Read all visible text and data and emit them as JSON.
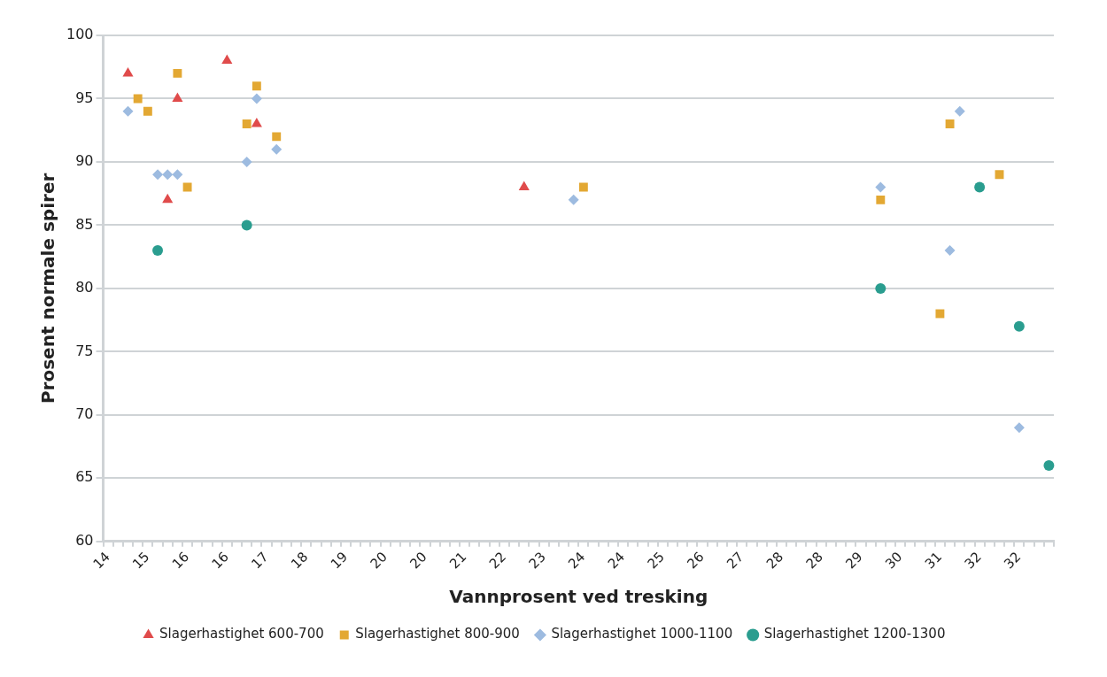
{
  "chart_data": {
    "type": "scatter",
    "xlabel": "Vannprosent ved tresking",
    "ylabel": "Prosent normale spirer",
    "categories": [
      "14",
      null,
      null,
      null,
      "15",
      null,
      null,
      null,
      "16",
      null,
      null,
      null,
      "16",
      null,
      null,
      null,
      "17",
      null,
      null,
      null,
      "18",
      null,
      null,
      null,
      "19",
      null,
      null,
      null,
      "20",
      null,
      null,
      null,
      "20",
      null,
      null,
      null,
      "21",
      null,
      null,
      null,
      "22",
      null,
      null,
      null,
      "23",
      null,
      null,
      null,
      "24",
      null,
      null,
      null,
      "24",
      null,
      null,
      null,
      "25",
      null,
      null,
      null,
      "26",
      null,
      null,
      null,
      "27",
      null,
      null,
      null,
      "28",
      null,
      null,
      null,
      "28",
      null,
      null,
      null,
      "29",
      null,
      null,
      null,
      "30",
      null,
      null,
      null,
      "31",
      null,
      null,
      null,
      "32",
      null,
      null,
      null,
      "32",
      null,
      null,
      null
    ],
    "series": [
      {
        "name": "Slagerhastighet 600-700",
        "color": "#e04b4b",
        "marker": "triangle",
        "values": [
          null,
          null,
          97,
          null,
          null,
          null,
          87,
          95,
          null,
          null,
          null,
          null,
          98,
          null,
          null,
          93,
          null,
          null,
          null,
          null,
          null,
          null,
          null,
          null,
          null,
          null,
          null,
          null,
          null,
          null,
          null,
          null,
          null,
          null,
          null,
          null,
          null,
          null,
          null,
          null,
          null,
          null,
          88,
          null,
          null,
          null,
          null,
          null,
          null,
          null,
          null,
          null,
          null,
          null,
          null,
          null,
          null,
          null,
          null,
          null,
          null,
          null,
          null,
          null,
          null,
          null,
          null,
          null,
          null,
          null,
          null,
          null,
          null,
          null,
          null,
          null,
          null,
          null,
          null,
          null,
          null,
          null,
          null,
          null,
          null,
          null,
          null,
          null,
          null,
          null,
          null,
          null,
          null,
          null,
          null,
          null
        ]
      },
      {
        "name": "Slagerhastighet 800-900",
        "color": "#e3a833",
        "marker": "square",
        "values": [
          null,
          null,
          null,
          95,
          94,
          null,
          null,
          97,
          88,
          null,
          null,
          null,
          null,
          null,
          93,
          96,
          null,
          92,
          null,
          null,
          null,
          null,
          null,
          null,
          null,
          null,
          null,
          null,
          null,
          null,
          null,
          null,
          null,
          null,
          null,
          null,
          null,
          null,
          null,
          null,
          null,
          null,
          null,
          null,
          null,
          null,
          null,
          null,
          88,
          null,
          null,
          null,
          null,
          null,
          null,
          null,
          null,
          null,
          null,
          null,
          null,
          null,
          null,
          null,
          null,
          null,
          null,
          null,
          null,
          null,
          null,
          null,
          null,
          null,
          null,
          null,
          null,
          null,
          87,
          null,
          null,
          null,
          null,
          null,
          78,
          93,
          null,
          null,
          null,
          null,
          89,
          null,
          null,
          null,
          null,
          null
        ]
      },
      {
        "name": "Slagerhastighet 1000-1100",
        "color": "#9dbbe0",
        "marker": "diamond",
        "values": [
          null,
          null,
          94,
          null,
          null,
          89,
          89,
          89,
          null,
          null,
          null,
          null,
          null,
          null,
          90,
          95,
          null,
          91,
          null,
          null,
          null,
          null,
          null,
          null,
          null,
          null,
          null,
          null,
          null,
          null,
          null,
          null,
          null,
          null,
          null,
          null,
          null,
          null,
          null,
          null,
          null,
          null,
          null,
          null,
          null,
          null,
          null,
          87,
          null,
          null,
          null,
          null,
          null,
          null,
          null,
          null,
          null,
          null,
          null,
          null,
          null,
          null,
          null,
          null,
          null,
          null,
          null,
          null,
          null,
          null,
          null,
          null,
          null,
          null,
          null,
          null,
          null,
          null,
          88,
          null,
          null,
          null,
          null,
          null,
          null,
          83,
          94,
          null,
          null,
          null,
          null,
          null,
          69,
          null,
          null,
          null
        ]
      },
      {
        "name": "Slagerhastighet 1200-1300",
        "color": "#2a9d8f",
        "marker": "circle",
        "values": [
          null,
          null,
          null,
          null,
          null,
          83,
          null,
          null,
          null,
          null,
          null,
          null,
          null,
          null,
          85,
          null,
          null,
          null,
          null,
          null,
          null,
          null,
          null,
          null,
          null,
          null,
          null,
          null,
          null,
          null,
          null,
          null,
          null,
          null,
          null,
          null,
          null,
          null,
          null,
          null,
          null,
          null,
          null,
          null,
          null,
          null,
          null,
          null,
          null,
          null,
          null,
          null,
          null,
          null,
          null,
          null,
          null,
          null,
          null,
          null,
          null,
          null,
          null,
          null,
          null,
          null,
          null,
          null,
          null,
          null,
          null,
          null,
          null,
          null,
          null,
          null,
          null,
          null,
          80,
          null,
          null,
          null,
          null,
          null,
          null,
          null,
          null,
          null,
          88,
          null,
          null,
          null,
          77,
          null,
          null,
          66
        ]
      }
    ],
    "ylim": [
      60,
      100
    ],
    "yticks": [
      60,
      65,
      70,
      75,
      80,
      85,
      90,
      95,
      100
    ],
    "grid": "y",
    "legend": "bottom"
  }
}
